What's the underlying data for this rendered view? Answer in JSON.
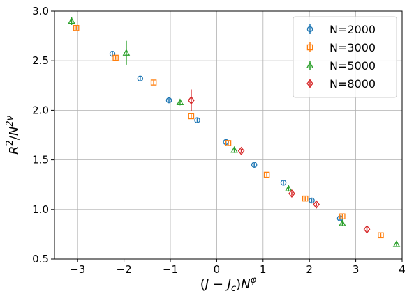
{
  "chart_data": {
    "type": "scatter",
    "title": "",
    "xlabel": "(J − J_c)N^φ",
    "ylabel": "R²/N^{2ν}",
    "xlim": [
      -3.5,
      4.0
    ],
    "ylim": [
      0.5,
      3.0
    ],
    "xticks": [
      -3,
      -2,
      -1,
      0,
      1,
      2,
      3,
      4
    ],
    "yticks": [
      0.5,
      1.0,
      1.5,
      2.0,
      2.5,
      3.0
    ],
    "xtick_labels": [
      "−3",
      "−2",
      "−1",
      "0",
      "1",
      "2",
      "3",
      "4"
    ],
    "ytick_labels": [
      "0.5",
      "1.0",
      "1.5",
      "2.0",
      "2.5",
      "3.0"
    ],
    "grid": true,
    "legend_position": "top-right",
    "error_bars": true,
    "series": [
      {
        "name": "N=2000",
        "color": "#1f77b4",
        "marker": "circle",
        "points": [
          {
            "x": -2.25,
            "y": 2.57,
            "err": 0.02
          },
          {
            "x": -1.65,
            "y": 2.32,
            "err": 0.02
          },
          {
            "x": -1.03,
            "y": 2.1,
            "err": 0.02
          },
          {
            "x": -0.42,
            "y": 1.9,
            "err": 0.02
          },
          {
            "x": 0.2,
            "y": 1.68,
            "err": 0.02
          },
          {
            "x": 0.81,
            "y": 1.45,
            "err": 0.02
          },
          {
            "x": 1.44,
            "y": 1.27,
            "err": 0.02
          },
          {
            "x": 2.05,
            "y": 1.09,
            "err": 0.02
          },
          {
            "x": 2.66,
            "y": 0.91,
            "err": 0.02
          }
        ]
      },
      {
        "name": "N=3000",
        "color": "#ff7f0e",
        "marker": "square",
        "points": [
          {
            "x": -3.03,
            "y": 2.83,
            "err": 0.02
          },
          {
            "x": -2.18,
            "y": 2.53,
            "err": 0.02
          },
          {
            "x": -1.36,
            "y": 2.28,
            "err": 0.02
          },
          {
            "x": -0.55,
            "y": 1.94,
            "err": 0.02
          },
          {
            "x": 0.25,
            "y": 1.67,
            "err": 0.02
          },
          {
            "x": 1.08,
            "y": 1.35,
            "err": 0.02
          },
          {
            "x": 1.91,
            "y": 1.11,
            "err": 0.02
          },
          {
            "x": 2.71,
            "y": 0.93,
            "err": 0.02
          },
          {
            "x": 3.54,
            "y": 0.74,
            "err": 0.02
          }
        ]
      },
      {
        "name": "N=5000",
        "color": "#2ca02c",
        "marker": "triangle",
        "points": [
          {
            "x": -3.13,
            "y": 2.9,
            "err": 0.04
          },
          {
            "x": -1.95,
            "y": 2.58,
            "err": 0.12
          },
          {
            "x": -0.79,
            "y": 2.08,
            "err": 0.03
          },
          {
            "x": 0.38,
            "y": 1.6,
            "err": 0.03
          },
          {
            "x": 1.55,
            "y": 1.21,
            "err": 0.03
          },
          {
            "x": 2.71,
            "y": 0.86,
            "err": 0.02
          },
          {
            "x": 3.88,
            "y": 0.65,
            "err": 0.02
          }
        ]
      },
      {
        "name": "N=8000",
        "color": "#d62728",
        "marker": "diamond",
        "points": [
          {
            "x": -0.55,
            "y": 2.1,
            "err": 0.11
          },
          {
            "x": 0.53,
            "y": 1.59,
            "err": 0.02
          },
          {
            "x": 1.62,
            "y": 1.16,
            "err": 0.02
          },
          {
            "x": 2.15,
            "y": 1.05,
            "err": 0.02
          },
          {
            "x": 3.24,
            "y": 0.8,
            "err": 0.02
          }
        ]
      }
    ]
  }
}
